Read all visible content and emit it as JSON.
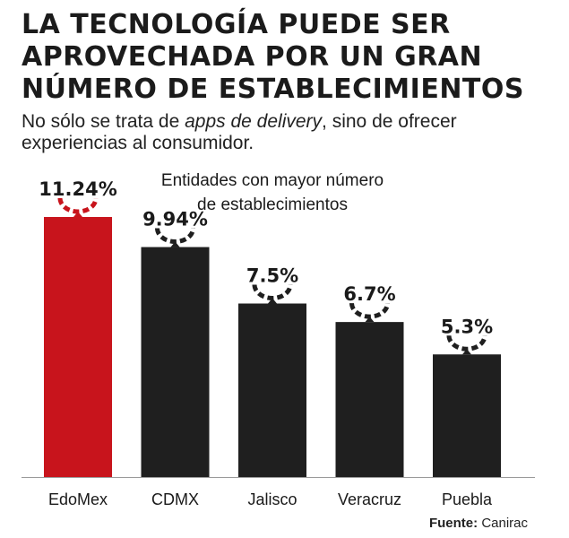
{
  "title_lines": [
    "LA TECNOLOGÍA PUEDE SER",
    "APROVECHADA POR UN GRAN",
    "NÚMERO DE ESTABLECIMIENTOS"
  ],
  "subtitle": {
    "before": "No sólo se trata de ",
    "italic": "apps de delivery",
    "after": ", sino de ofrecer experiencias al consumidor."
  },
  "source": {
    "label": "Fuente:",
    "value": "Canirac"
  },
  "colors": {
    "highlight": "#c8141c",
    "bar": "#1f1f1f",
    "text": "#1a1a1a"
  },
  "chart_data": {
    "type": "bar",
    "title": "",
    "annotation": [
      "Entidades con mayor número",
      "de establecimientos"
    ],
    "categories": [
      "EdoMex",
      "CDMX",
      "Jalisco",
      "Veracruz",
      "Puebla"
    ],
    "values": [
      11.24,
      9.94,
      7.5,
      6.7,
      5.3
    ],
    "value_labels": [
      "11.24%",
      "9.94%",
      "7.5%",
      "6.7%",
      "5.3%"
    ],
    "highlight_index": 0,
    "xlabel": "",
    "ylabel": "",
    "ylim": [
      0,
      11.24
    ],
    "grid": false,
    "legend": "none"
  }
}
